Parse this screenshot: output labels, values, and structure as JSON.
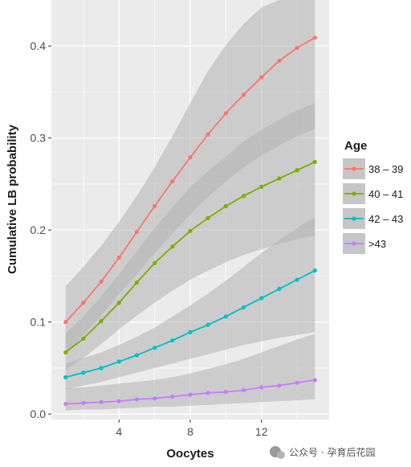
{
  "chart_data": {
    "type": "line",
    "xlabel": "Oocytes",
    "ylabel": "Cumulative LB probability",
    "xlim": [
      0.2,
      15.8
    ],
    "ylim": [
      -0.006,
      0.45
    ],
    "x_ticks": [
      4,
      8,
      12
    ],
    "y_ticks": [
      0.0,
      0.1,
      0.2,
      0.3,
      0.4
    ],
    "x_tick_labels": [
      "4",
      "8",
      "12"
    ],
    "y_tick_labels": [
      "0.0",
      "0.1",
      "0.2",
      "0.3",
      "0.4"
    ],
    "grid": true,
    "legend": {
      "title": "Age",
      "position": "right"
    },
    "x": [
      1,
      2,
      3,
      4,
      5,
      6,
      7,
      8,
      9,
      10,
      11,
      12,
      13,
      14,
      15
    ],
    "series": [
      {
        "name": "38 – 39",
        "color": "#F8766D",
        "values": [
          0.1,
          0.121,
          0.144,
          0.17,
          0.198,
          0.226,
          0.253,
          0.279,
          0.304,
          0.327,
          0.347,
          0.366,
          0.384,
          0.398,
          0.409
        ],
        "ci_lower": [
          0.065,
          0.086,
          0.107,
          0.13,
          0.152,
          0.175,
          0.196,
          0.217,
          0.236,
          0.253,
          0.268,
          0.281,
          0.292,
          0.302,
          0.31
        ],
        "ci_upper": [
          0.139,
          0.16,
          0.183,
          0.209,
          0.237,
          0.268,
          0.302,
          0.338,
          0.373,
          0.401,
          0.424,
          0.442,
          0.45,
          0.45,
          0.45
        ]
      },
      {
        "name": "40 – 41",
        "color": "#7CAE00",
        "values": [
          0.067,
          0.082,
          0.101,
          0.121,
          0.143,
          0.164,
          0.182,
          0.199,
          0.213,
          0.226,
          0.237,
          0.247,
          0.256,
          0.265,
          0.274
        ],
        "ci_lower": [
          0.048,
          0.061,
          0.076,
          0.092,
          0.107,
          0.121,
          0.134,
          0.146,
          0.156,
          0.165,
          0.173,
          0.179,
          0.185,
          0.19,
          0.194
        ],
        "ci_upper": [
          0.088,
          0.106,
          0.128,
          0.152,
          0.177,
          0.202,
          0.225,
          0.246,
          0.264,
          0.28,
          0.296,
          0.309,
          0.32,
          0.33,
          0.338
        ]
      },
      {
        "name": "42 – 43",
        "color": "#00BFC4",
        "values": [
          0.04,
          0.045,
          0.05,
          0.057,
          0.064,
          0.072,
          0.08,
          0.089,
          0.097,
          0.106,
          0.116,
          0.126,
          0.136,
          0.146,
          0.156
        ],
        "ci_lower": [
          0.027,
          0.031,
          0.035,
          0.04,
          0.045,
          0.05,
          0.055,
          0.06,
          0.065,
          0.07,
          0.075,
          0.079,
          0.083,
          0.086,
          0.089
        ],
        "ci_upper": [
          0.055,
          0.061,
          0.067,
          0.075,
          0.084,
          0.094,
          0.106,
          0.118,
          0.131,
          0.145,
          0.16,
          0.175,
          0.189,
          0.202,
          0.214
        ]
      },
      {
        "name": ">43",
        "color": "#C77CFF",
        "values": [
          0.011,
          0.012,
          0.013,
          0.014,
          0.016,
          0.017,
          0.019,
          0.021,
          0.023,
          0.024,
          0.026,
          0.029,
          0.031,
          0.034,
          0.037
        ],
        "ci_lower": [
          0.004,
          0.005,
          0.005,
          0.006,
          0.007,
          0.008,
          0.008,
          0.009,
          0.01,
          0.011,
          0.012,
          0.013,
          0.014,
          0.015,
          0.016
        ],
        "ci_upper": [
          0.028,
          0.029,
          0.031,
          0.033,
          0.035,
          0.037,
          0.04,
          0.044,
          0.049,
          0.054,
          0.06,
          0.067,
          0.074,
          0.081,
          0.087
        ]
      }
    ]
  },
  "watermark": "公众号 · 孕育后花园",
  "colors": {
    "panel": "#EBEBEB",
    "grid": "#FFFFFF",
    "ribbon": "#B3B3B3"
  }
}
